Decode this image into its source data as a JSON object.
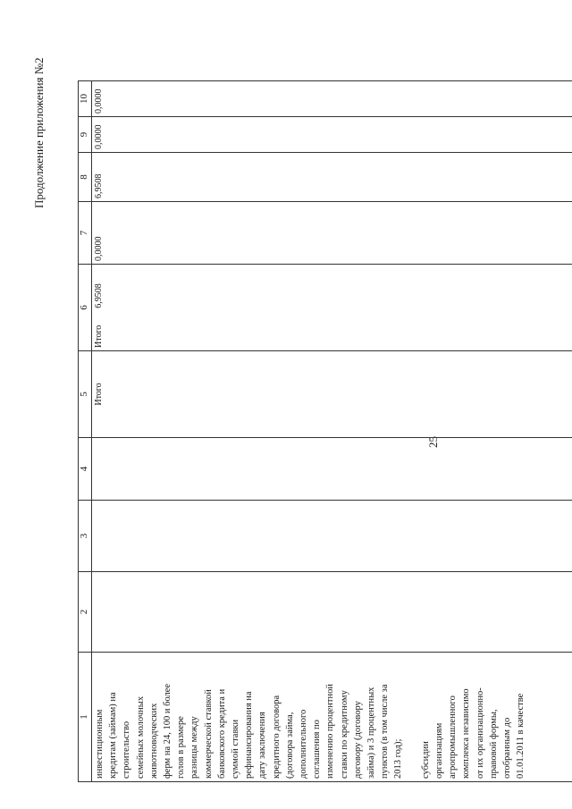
{
  "page_number": "25",
  "appendix_title": "Продолжение приложения №2",
  "table": {
    "headers": [
      "1",
      "2",
      "3",
      "4",
      "5",
      "6",
      "7",
      "8",
      "9",
      "10"
    ],
    "row": {
      "c1_lines": [
        "инвестиционным",
        "кредитам (займам) на",
        "строительство",
        "семейных молочных",
        "животноводческих",
        "ферм на 24, 100 и более",
        "голов в размере",
        "разницы между",
        "коммерческой ставкой",
        "банковского кредита и",
        "суммой ставки",
        "рефинансирования на",
        "дату заключения",
        "кредитного договора",
        "(договора займа,",
        "дополнительного",
        "соглашения по",
        "изменению процентной",
        "ставки по кредитному",
        "договору (договору",
        "займа) и 3 процентных",
        "пунктов (в том числе за",
        "2013 год);",
        "",
        "субсидии",
        "организациям",
        "агропромышленного",
        "комплекса независимо",
        "от их организационно-",
        "правовой формы,",
        "отобранным до",
        "01.01.2011 в качестве"
      ],
      "c2": "",
      "c3": "",
      "c4": "",
      "c5": "Итого",
      "c6_label": "Итого",
      "c6_value": "6,9508",
      "c7": "0,0000",
      "c8": "6,9508",
      "c9": "0,0000",
      "c10": "0,0000"
    }
  }
}
